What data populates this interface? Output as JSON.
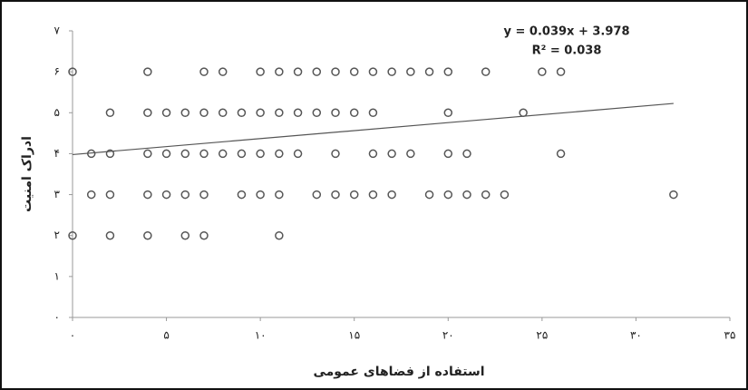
{
  "chart_data": {
    "type": "scatter",
    "annotations": [
      "y = 0.039x + 3.978",
      "R² = 0.038"
    ],
    "x_label": "استفاده از فضاهای عمومی",
    "y_label": "ادراک امنیت",
    "color": "#555555",
    "x": [
      0,
      4,
      7,
      8,
      10,
      11,
      12,
      13,
      14,
      15,
      16,
      17,
      18,
      19,
      20,
      22,
      25,
      26,
      2,
      4,
      5,
      6,
      7,
      8,
      9,
      10,
      11,
      12,
      13,
      14,
      15,
      16,
      20,
      24,
      1,
      2,
      4,
      5,
      6,
      7,
      8,
      9,
      10,
      11,
      12,
      14,
      16,
      17,
      18,
      20,
      21,
      26,
      1,
      2,
      4,
      5,
      6,
      7,
      9,
      10,
      11,
      13,
      14,
      15,
      16,
      17,
      19,
      20,
      21,
      22,
      23,
      32,
      0,
      2,
      4,
      6,
      7,
      11
    ],
    "values": [
      6,
      6,
      6,
      6,
      6,
      6,
      6,
      6,
      6,
      6,
      6,
      6,
      6,
      6,
      6,
      6,
      6,
      6,
      5,
      5,
      5,
      5,
      5,
      5,
      5,
      5,
      5,
      5,
      5,
      5,
      5,
      5,
      5,
      5,
      4,
      4,
      4,
      4,
      4,
      4,
      4,
      4,
      4,
      4,
      4,
      4,
      4,
      4,
      4,
      4,
      4,
      4,
      3,
      3,
      3,
      3,
      3,
      3,
      3,
      3,
      3,
      3,
      3,
      3,
      3,
      3,
      3,
      3,
      3,
      3,
      3,
      3,
      2,
      2,
      2,
      2,
      2,
      2
    ],
    "trendline": {
      "x": [
        0,
        32
      ],
      "values": [
        3.978,
        5.226
      ],
      "color": "#555555"
    },
    "xlim": [
      0,
      35
    ],
    "ylim": [
      0,
      7
    ],
    "xticks": [
      {
        "value": 0,
        "label": "۰"
      },
      {
        "value": 5,
        "label": "۵"
      },
      {
        "value": 10,
        "label": "۱۰"
      },
      {
        "value": 15,
        "label": "۱۵"
      },
      {
        "value": 20,
        "label": "۲۰"
      },
      {
        "value": 25,
        "label": "۲۵"
      },
      {
        "value": 30,
        "label": "۳۰"
      },
      {
        "value": 35,
        "label": "۳۵"
      }
    ],
    "yticks": [
      {
        "value": 0,
        "label": "۰"
      },
      {
        "value": 1,
        "label": "۱"
      },
      {
        "value": 2,
        "label": "۲"
      },
      {
        "value": 3,
        "label": "۳"
      },
      {
        "value": 4,
        "label": "۴"
      },
      {
        "value": 5,
        "label": "۵"
      },
      {
        "value": 6,
        "label": "۶"
      },
      {
        "value": 7,
        "label": "۷"
      }
    ]
  }
}
